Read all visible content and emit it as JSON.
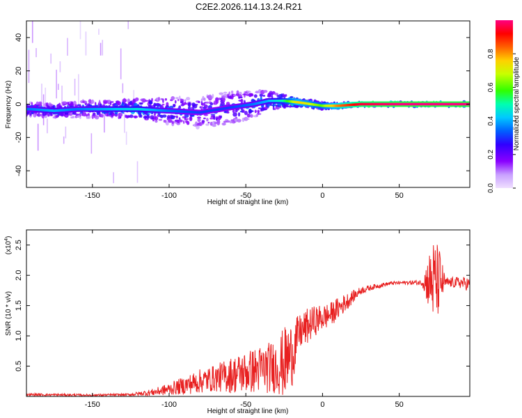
{
  "page": {
    "title": "C2E2.2026.114.13.24.R21"
  },
  "colors": {
    "series_line": "#e82020",
    "colormap": [
      "#f0e0ff",
      "#c8a0ff",
      "#8a00ff",
      "#3000ff",
      "#0060ff",
      "#00c8ff",
      "#00ffb0",
      "#30ff00",
      "#c8ff00",
      "#ffd000",
      "#ff6000",
      "#ff0000",
      "#ff0080"
    ]
  },
  "chart_data": [
    {
      "type": "heatmap",
      "name": "spectrogram",
      "title": "",
      "xlabel": "Height of straight line (km)",
      "ylabel": "Frequency (Hz)",
      "xlim": [
        -193,
        96
      ],
      "ylim": [
        -50,
        50
      ],
      "xticks": [
        -150,
        -100,
        -50,
        0,
        50
      ],
      "yticks": [
        -40,
        -20,
        0,
        20,
        40
      ],
      "colorbar": {
        "label": "Normalized spectral amplitude",
        "range": [
          0.0,
          1.0
        ],
        "ticks": [
          0.0,
          0.2,
          0.4,
          0.6,
          0.8
        ]
      },
      "ridge": [
        {
          "x": -190,
          "y": -3,
          "spread": 4,
          "amp": 0.35
        },
        {
          "x": -175,
          "y": -4,
          "spread": 4,
          "amp": 0.4
        },
        {
          "x": -160,
          "y": -3,
          "spread": 5,
          "amp": 0.35
        },
        {
          "x": -140,
          "y": -3,
          "spread": 5,
          "amp": 0.4
        },
        {
          "x": -120,
          "y": -3,
          "spread": 6,
          "amp": 0.45
        },
        {
          "x": -100,
          "y": -4,
          "spread": 8,
          "amp": 0.35
        },
        {
          "x": -80,
          "y": -5,
          "spread": 9,
          "amp": 0.3
        },
        {
          "x": -60,
          "y": -2,
          "spread": 10,
          "amp": 0.3
        },
        {
          "x": -45,
          "y": 0,
          "spread": 8,
          "amp": 0.35
        },
        {
          "x": -35,
          "y": 2,
          "spread": 6,
          "amp": 0.4
        },
        {
          "x": -25,
          "y": 2,
          "spread": 4,
          "amp": 0.5
        },
        {
          "x": -15,
          "y": 1,
          "spread": 2,
          "amp": 0.75
        },
        {
          "x": 0,
          "y": -1,
          "spread": 2,
          "amp": 0.6
        },
        {
          "x": 10,
          "y": -1,
          "spread": 1.5,
          "amp": 0.8
        },
        {
          "x": 25,
          "y": 0,
          "spread": 1.2,
          "amp": 0.95
        },
        {
          "x": 50,
          "y": 0,
          "spread": 1.2,
          "amp": 1.0
        },
        {
          "x": 75,
          "y": 0,
          "spread": 1.2,
          "amp": 1.0
        },
        {
          "x": 95,
          "y": 0,
          "spread": 1.2,
          "amp": 1.0
        }
      ]
    },
    {
      "type": "line",
      "name": "snr",
      "title": "",
      "xlabel": "Height of straight line (km)",
      "ylabel": "SNR (10 * v/v)",
      "y_scale_label": "(x10",
      "y_scale_exp": "4",
      "xlim": [
        -193,
        96
      ],
      "ylim": [
        0,
        2.75
      ],
      "xticks": [
        -150,
        -100,
        -50,
        0,
        50
      ],
      "yticks": [
        0.5,
        1.0,
        1.5,
        2.0,
        2.5
      ],
      "series": [
        {
          "name": "SNR",
          "envelope": [
            {
              "x": -193,
              "y": 0.03,
              "noise": 0.02
            },
            {
              "x": -150,
              "y": 0.02,
              "noise": 0.02
            },
            {
              "x": -125,
              "y": 0.03,
              "noise": 0.02
            },
            {
              "x": -110,
              "y": 0.07,
              "noise": 0.06
            },
            {
              "x": -100,
              "y": 0.12,
              "noise": 0.1
            },
            {
              "x": -90,
              "y": 0.18,
              "noise": 0.15
            },
            {
              "x": -80,
              "y": 0.25,
              "noise": 0.2
            },
            {
              "x": -70,
              "y": 0.3,
              "noise": 0.22
            },
            {
              "x": -60,
              "y": 0.35,
              "noise": 0.3
            },
            {
              "x": -50,
              "y": 0.4,
              "noise": 0.35
            },
            {
              "x": -40,
              "y": 0.45,
              "noise": 0.4
            },
            {
              "x": -30,
              "y": 0.5,
              "noise": 0.45
            },
            {
              "x": -25,
              "y": 0.55,
              "noise": 0.6
            },
            {
              "x": -20,
              "y": 0.7,
              "noise": 0.55
            },
            {
              "x": -15,
              "y": 1.05,
              "noise": 0.3
            },
            {
              "x": -10,
              "y": 1.15,
              "noise": 0.3
            },
            {
              "x": -5,
              "y": 1.25,
              "noise": 0.25
            },
            {
              "x": 0,
              "y": 1.3,
              "noise": 0.22
            },
            {
              "x": 5,
              "y": 1.35,
              "noise": 0.2
            },
            {
              "x": 10,
              "y": 1.45,
              "noise": 0.18
            },
            {
              "x": 15,
              "y": 1.55,
              "noise": 0.15
            },
            {
              "x": 20,
              "y": 1.65,
              "noise": 0.1
            },
            {
              "x": 25,
              "y": 1.75,
              "noise": 0.06
            },
            {
              "x": 35,
              "y": 1.82,
              "noise": 0.04
            },
            {
              "x": 45,
              "y": 1.87,
              "noise": 0.03
            },
            {
              "x": 55,
              "y": 1.88,
              "noise": 0.03
            },
            {
              "x": 65,
              "y": 1.88,
              "noise": 0.05
            },
            {
              "x": 68,
              "y": 1.9,
              "noise": 0.35
            },
            {
              "x": 72,
              "y": 1.9,
              "noise": 0.7
            },
            {
              "x": 76,
              "y": 1.9,
              "noise": 0.6
            },
            {
              "x": 80,
              "y": 1.88,
              "noise": 0.08
            },
            {
              "x": 90,
              "y": 1.88,
              "noise": 0.1
            },
            {
              "x": 96,
              "y": 1.85,
              "noise": 0.12
            }
          ]
        }
      ]
    }
  ]
}
